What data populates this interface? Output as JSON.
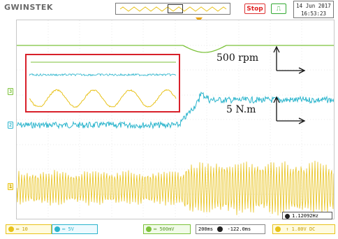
{
  "header": {
    "brand": "GWINSTEK",
    "run_state": "Stop",
    "trigger_mode_icon": "trigger-edge-icon",
    "date": "14 Jun 2017",
    "time": "16:53:23"
  },
  "annotations": {
    "speed": "500 rpm",
    "torque": "5 N.m"
  },
  "channel_markers": {
    "ch1": "1",
    "ch2": "2",
    "ch3": "3"
  },
  "footer": {
    "ch1_scale": "10",
    "ch2_scale": "5V",
    "ch4_scale": "500mV",
    "timebase": "200ms",
    "trigger_position": "-122.0ms",
    "trigger_level": "1.80V",
    "trigger_coupling": "DC"
  },
  "frequency_readout": "1.12092Hz",
  "colors": {
    "ch1": "#e8c21a",
    "ch2": "#2ab4cc",
    "ch3": "#7cc23a",
    "highlight_box": "#d8202a"
  }
}
